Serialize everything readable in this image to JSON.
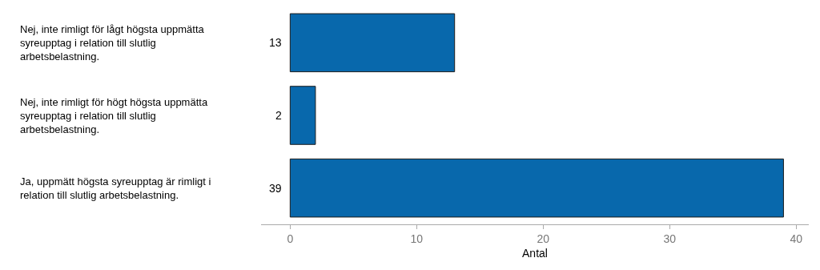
{
  "chart_data": {
    "type": "bar",
    "orientation": "horizontal",
    "categories": [
      "Nej, inte rimligt för lågt högsta uppmätta syreupptag i relation till slutlig arbetsbelastning.",
      "Nej, inte rimligt för högt högsta uppmätta syreupptag i relation till slutlig arbetsbelastning.",
      "Ja, uppmätt högsta syreupptag är rimligt i relation till slutlig arbetsbelastning."
    ],
    "values": [
      13,
      2,
      39
    ],
    "color": "#0868ac",
    "xlabel": "Antal",
    "xlim": [
      -2.3,
      41
    ],
    "xticks": [
      0,
      10,
      20,
      30,
      40
    ],
    "data_labels": true
  }
}
